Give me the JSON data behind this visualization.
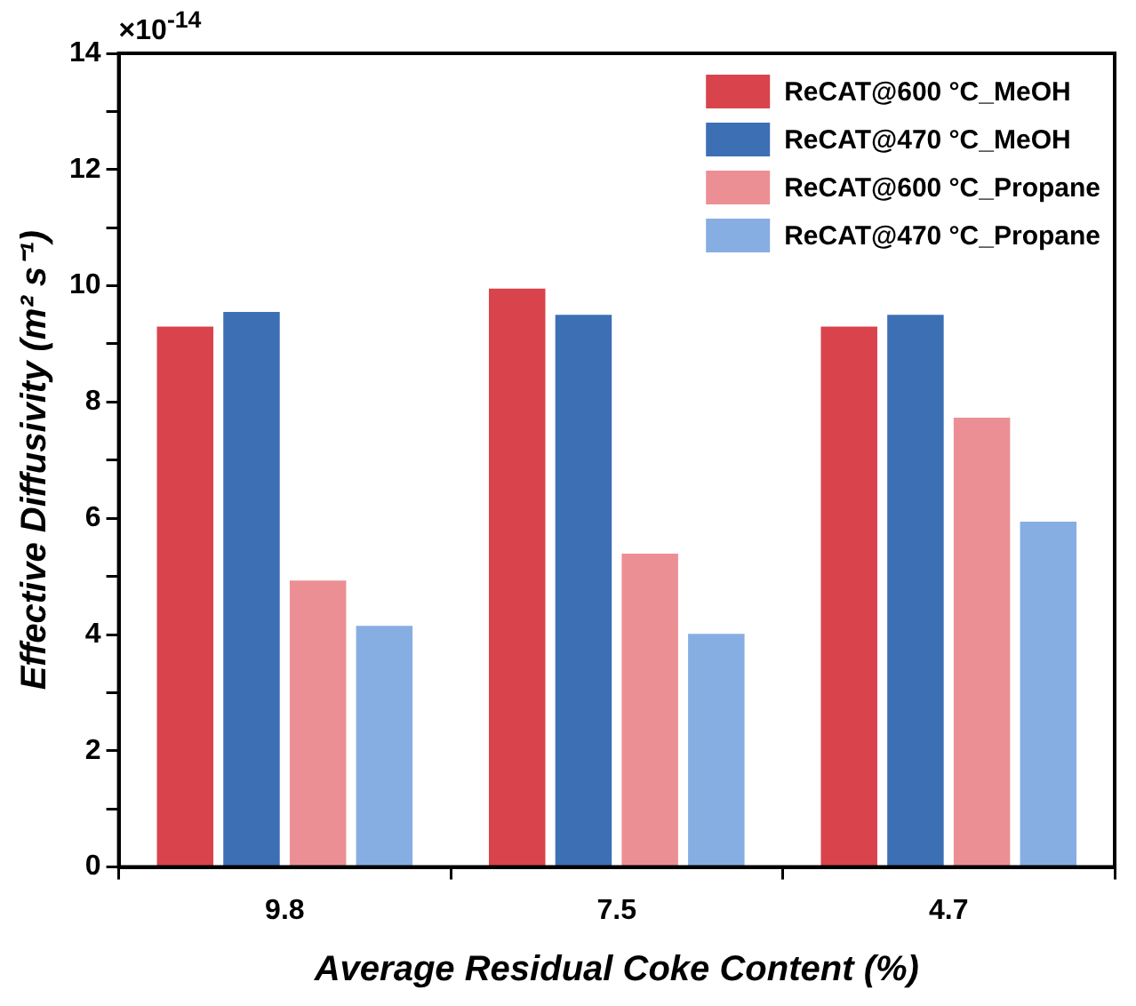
{
  "chart_data": {
    "type": "bar",
    "xlabel": "Average Residual Coke Content (%)",
    "ylabel": "Effective Diffusivity (m² s⁻¹)",
    "categories": [
      "9.8",
      "7.5",
      "4.7"
    ],
    "series": [
      {
        "name": "ReCAT@600 °C_MeOH",
        "color": "#d9434b",
        "values": [
          9.3,
          9.95,
          9.3
        ]
      },
      {
        "name": "ReCAT@470 °C_MeOH",
        "color": "#3d6fb5",
        "values": [
          9.55,
          9.5,
          9.5
        ]
      },
      {
        "name": "ReCAT@600 °C_Propane",
        "color": "#ec8f94",
        "values": [
          4.93,
          5.39,
          7.73
        ]
      },
      {
        "name": "ReCAT@470 °C_Propane",
        "color": "#86aee3",
        "values": [
          4.15,
          4.01,
          5.94
        ]
      }
    ],
    "ylim": [
      0,
      14
    ],
    "yticks": [
      0,
      {
        "value": 1,
        "label": null
      },
      2,
      {
        "value": 3,
        "label": null
      },
      4,
      {
        "value": 5,
        "label": null
      },
      6,
      {
        "value": 7,
        "label": null
      },
      8,
      {
        "value": 9,
        "label": null
      },
      10,
      {
        "value": 11,
        "label": null
      },
      12,
      {
        "value": 13,
        "label": null
      },
      14
    ],
    "annotations": [
      "×10$^{-14}$"
    ],
    "legend": "top right",
    "grid": false
  }
}
